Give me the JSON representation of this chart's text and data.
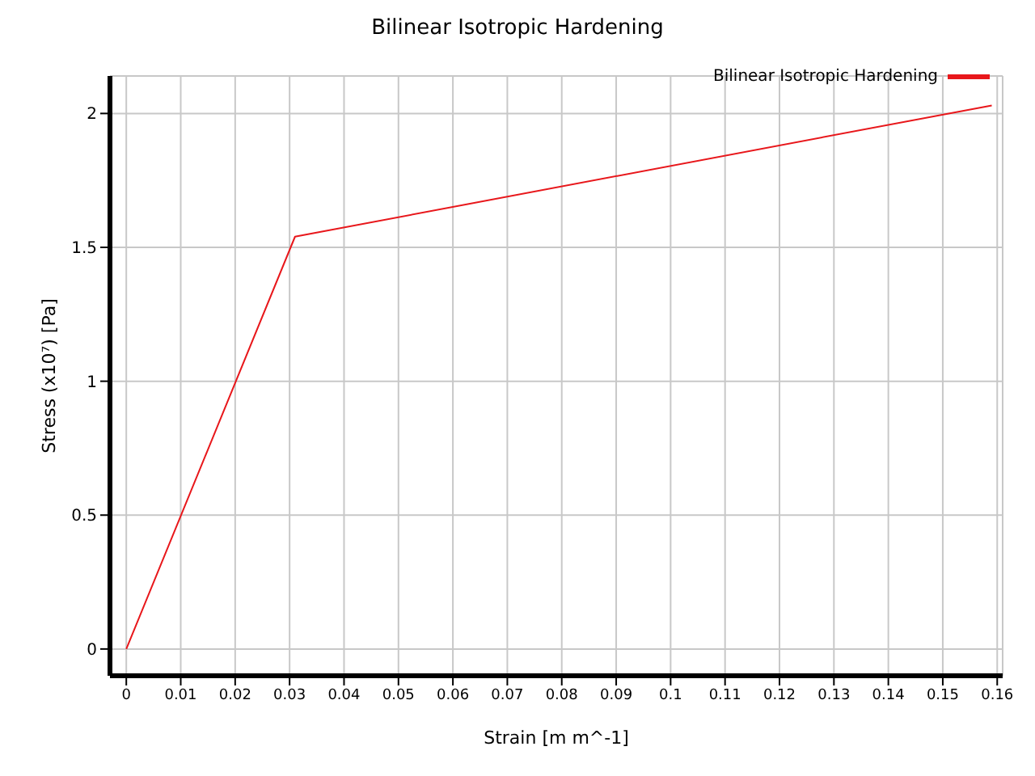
{
  "chart_data": {
    "type": "line",
    "title": "Bilinear Isotropic Hardening",
    "xlabel": "Strain  [m m^-1]",
    "ylabel": "Stress  (x10⁷)  [Pa]",
    "series": [
      {
        "name": "Bilinear Isotropic Hardening",
        "color": "#e8171b",
        "x": [
          0,
          0.031,
          0.159
        ],
        "values": [
          0,
          1.54,
          2.03
        ]
      }
    ],
    "xlim": [
      -0.003,
      0.161
    ],
    "xticks": [
      0,
      0.01,
      0.02,
      0.03,
      0.04,
      0.05,
      0.06,
      0.07,
      0.08,
      0.09,
      0.1,
      0.11,
      0.12,
      0.13,
      0.14,
      0.15,
      0.16
    ],
    "ylim": [
      -0.1,
      2.14
    ],
    "yticks": [
      0,
      0.5,
      1,
      1.5,
      2
    ],
    "grid": true,
    "legend": "top right",
    "marker": "none",
    "line_style": "solid"
  }
}
